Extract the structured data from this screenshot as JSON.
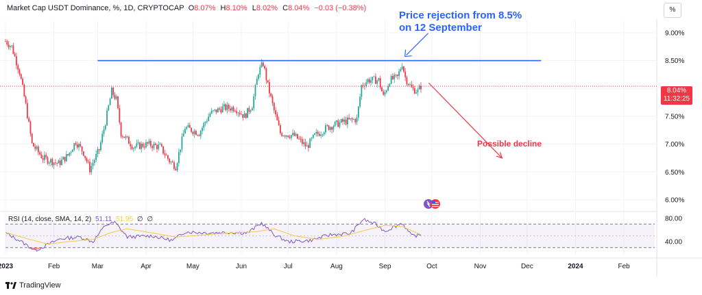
{
  "header": {
    "symbol": "Market Cap USDT Dominance, %, 1D, CRYPTOCAP",
    "open_label": "O",
    "open": "8.07%",
    "high_label": "H",
    "high": "8.10%",
    "low_label": "L",
    "low": "8.02%",
    "close_label": "C",
    "close": "8.04%",
    "change": "−0.03 (−0.38%)"
  },
  "scale_button": "%",
  "price_tag": {
    "price": "8.04%",
    "countdown": "11:32:25"
  },
  "annotations": {
    "rejection_line1": "Price rejection from 8.5%",
    "rejection_line2": "on 12 September",
    "decline": "Possible decline"
  },
  "rsi_header": {
    "label": "RSI (14, close, SMA, 14, 2)",
    "rsi": "51.11",
    "sma": "51.95",
    "extra1": "∅",
    "extra2": "∅"
  },
  "footer": {
    "brand": "TradingView"
  },
  "colors": {
    "up": "#26a69a",
    "down": "#f23645",
    "line": "#2962ff",
    "rsi": "#7e57c2",
    "rsi_sma": "#f7c948"
  },
  "chart_data": [
    {
      "type": "candlestick",
      "title": "Market Cap USDT Dominance, %, 1D, CRYPTOCAP",
      "y_ticks": [
        "9.00%",
        "8.50%",
        "8.00%",
        "7.50%",
        "7.00%",
        "6.50%",
        "6.00%"
      ],
      "ylim": [
        5.84,
        9.22
      ],
      "x_ticks": [
        "2023",
        "Feb",
        "Mar",
        "Apr",
        "May",
        "Jun",
        "Jul",
        "Aug",
        "Sep",
        "Oct",
        "Nov",
        "Dec",
        "2024",
        "Feb"
      ],
      "x_tick_dates": [
        "2023-01-01",
        "2023-02-01",
        "2023-03-01",
        "2023-04-01",
        "2023-05-01",
        "2023-06-01",
        "2023-07-01",
        "2023-08-01",
        "2023-09-01",
        "2023-10-01",
        "2023-11-01",
        "2023-12-01",
        "2024-01-01",
        "2024-02-01"
      ],
      "resistance_level": 8.5,
      "resistance_range": [
        "2023-03-01",
        "2023-12-10"
      ],
      "current_price": 8.04,
      "close_series": {
        "start": "2023-01-01",
        "end": "2023-09-24",
        "keypoints": [
          [
            "2023-01-01",
            8.85
          ],
          [
            "2023-01-05",
            8.75
          ],
          [
            "2023-01-10",
            8.3
          ],
          [
            "2023-01-14",
            7.7
          ],
          [
            "2023-01-18",
            7.0
          ],
          [
            "2023-01-25",
            6.75
          ],
          [
            "2023-02-04",
            6.65
          ],
          [
            "2023-02-10",
            6.8
          ],
          [
            "2023-02-15",
            7.05
          ],
          [
            "2023-02-20",
            6.85
          ],
          [
            "2023-02-24",
            6.55
          ],
          [
            "2023-03-02",
            6.9
          ],
          [
            "2023-03-06",
            7.4
          ],
          [
            "2023-03-10",
            7.95
          ],
          [
            "2023-03-13",
            7.8
          ],
          [
            "2023-03-16",
            7.2
          ],
          [
            "2023-03-24",
            6.95
          ],
          [
            "2023-04-02",
            7.0
          ],
          [
            "2023-04-10",
            6.95
          ],
          [
            "2023-04-16",
            6.7
          ],
          [
            "2023-04-20",
            6.6
          ],
          [
            "2023-04-26",
            7.3
          ],
          [
            "2023-05-05",
            7.2
          ],
          [
            "2023-05-12",
            7.55
          ],
          [
            "2023-05-20",
            7.65
          ],
          [
            "2023-05-28",
            7.65
          ],
          [
            "2023-06-03",
            7.5
          ],
          [
            "2023-06-08",
            7.7
          ],
          [
            "2023-06-12",
            8.3
          ],
          [
            "2023-06-15",
            8.45
          ],
          [
            "2023-06-18",
            8.05
          ],
          [
            "2023-06-22",
            7.6
          ],
          [
            "2023-06-26",
            7.2
          ],
          [
            "2023-07-05",
            7.15
          ],
          [
            "2023-07-13",
            6.95
          ],
          [
            "2023-07-18",
            7.15
          ],
          [
            "2023-07-26",
            7.3
          ],
          [
            "2023-08-05",
            7.4
          ],
          [
            "2023-08-14",
            7.45
          ],
          [
            "2023-08-17",
            8.05
          ],
          [
            "2023-08-21",
            8.15
          ],
          [
            "2023-08-28",
            8.15
          ],
          [
            "2023-08-31",
            7.85
          ],
          [
            "2023-09-04",
            8.15
          ],
          [
            "2023-09-09",
            8.2
          ],
          [
            "2023-09-12",
            8.45
          ],
          [
            "2023-09-14",
            8.2
          ],
          [
            "2023-09-18",
            8.0
          ],
          [
            "2023-09-22",
            7.95
          ],
          [
            "2023-09-24",
            8.04
          ]
        ]
      },
      "rejection_point": [
        "2023-09-12",
        8.5
      ],
      "decline_arrow": {
        "from": [
          "2023-09-29",
          8.1
        ],
        "to": [
          "2023-11-15",
          6.75
        ]
      }
    },
    {
      "type": "line",
      "title": "RSI (14, close, SMA, 14, 2)",
      "y_ticks": [
        "80.00",
        "40.00"
      ],
      "ylim": [
        18,
        88
      ],
      "band": [
        30,
        70
      ],
      "series": [
        {
          "name": "RSI",
          "keypoints": [
            [
              "2023-01-01",
              55
            ],
            [
              "2023-01-10",
              42
            ],
            [
              "2023-01-20",
              25
            ],
            [
              "2023-01-28",
              35
            ],
            [
              "2023-02-05",
              45
            ],
            [
              "2023-02-18",
              48
            ],
            [
              "2023-02-26",
              40
            ],
            [
              "2023-03-06",
              68
            ],
            [
              "2023-03-12",
              73
            ],
            [
              "2023-03-20",
              48
            ],
            [
              "2023-04-05",
              50
            ],
            [
              "2023-04-18",
              42
            ],
            [
              "2023-04-26",
              57
            ],
            [
              "2023-05-10",
              55
            ],
            [
              "2023-05-25",
              56
            ],
            [
              "2023-06-05",
              55
            ],
            [
              "2023-06-14",
              72
            ],
            [
              "2023-06-22",
              52
            ],
            [
              "2023-07-01",
              40
            ],
            [
              "2023-07-15",
              42
            ],
            [
              "2023-07-28",
              52
            ],
            [
              "2023-08-10",
              54
            ],
            [
              "2023-08-18",
              78
            ],
            [
              "2023-08-26",
              70
            ],
            [
              "2023-09-01",
              58
            ],
            [
              "2023-09-12",
              72
            ],
            [
              "2023-09-18",
              50
            ],
            [
              "2023-09-24",
              51
            ]
          ]
        },
        {
          "name": "RSI SMA",
          "keypoints": [
            [
              "2023-01-01",
              56
            ],
            [
              "2023-01-15",
              45
            ],
            [
              "2023-01-28",
              36
            ],
            [
              "2023-02-10",
              40
            ],
            [
              "2023-02-26",
              44
            ],
            [
              "2023-03-10",
              56
            ],
            [
              "2023-03-20",
              62
            ],
            [
              "2023-04-05",
              55
            ],
            [
              "2023-04-20",
              48
            ],
            [
              "2023-05-05",
              51
            ],
            [
              "2023-05-25",
              55
            ],
            [
              "2023-06-10",
              57
            ],
            [
              "2023-06-22",
              62
            ],
            [
              "2023-07-05",
              50
            ],
            [
              "2023-07-20",
              44
            ],
            [
              "2023-08-05",
              49
            ],
            [
              "2023-08-20",
              60
            ],
            [
              "2023-09-01",
              68
            ],
            [
              "2023-09-12",
              66
            ],
            [
              "2023-09-24",
              52
            ]
          ]
        }
      ]
    }
  ]
}
